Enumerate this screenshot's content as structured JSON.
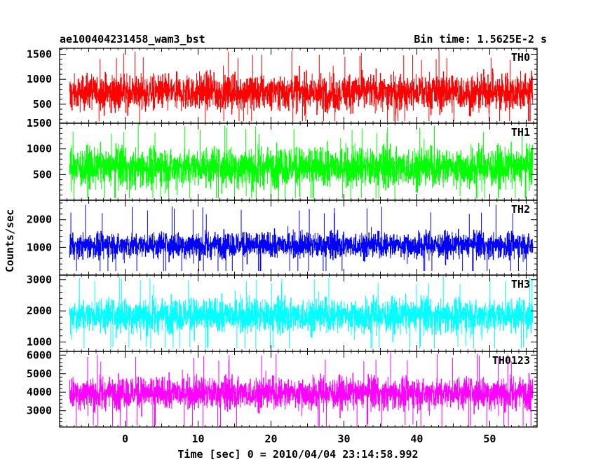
{
  "chart_data": {
    "type": "line",
    "title": "ae100404231458_wam3_bst",
    "subtitle": "Bin time: 1.5625E-2 s",
    "xlabel": "Time [sec] 0 = 2010/04/04 23:14:58.992",
    "ylabel": "Counts/sec",
    "xlim": [
      -9.0,
      56.5
    ],
    "x_ticks": [
      0,
      10,
      20,
      30,
      40,
      50
    ],
    "data_x_range": [
      -7.6,
      55.9
    ],
    "grid": false,
    "panels": [
      {
        "name": "TH0",
        "color": "#ff0000",
        "ylim": [
          120,
          1620
        ],
        "y_ticks": [
          500,
          1000,
          1500
        ],
        "typical_range": [
          280,
          1300
        ],
        "min": 160,
        "max": 1590,
        "mean": 740
      },
      {
        "name": "TH1",
        "color": "#00ff00",
        "ylim": [
          0,
          1500
        ],
        "y_ticks": [
          500,
          1000,
          1500
        ],
        "typical_range": [
          120,
          1250
        ],
        "min": 40,
        "max": 1500,
        "mean": 640
      },
      {
        "name": "TH2",
        "color": "#0000ff",
        "ylim": [
          0,
          2700
        ],
        "y_ticks": [
          1000,
          2000
        ],
        "typical_range": [
          450,
          1800
        ],
        "min": 150,
        "max": 2550,
        "mean": 1080
      },
      {
        "name": "TH3",
        "color": "#00ffff",
        "ylim": [
          700,
          3150
        ],
        "y_ticks": [
          1000,
          2000,
          3000
        ],
        "typical_range": [
          1100,
          2700
        ],
        "min": 800,
        "max": 3150,
        "mean": 1850
      },
      {
        "name": "TH0123",
        "color": "#ff00ff",
        "ylim": [
          2120,
          6200
        ],
        "y_ticks": [
          3000,
          4000,
          5000,
          6000
        ],
        "typical_range": [
          2700,
          5200
        ],
        "min": 2150,
        "max": 6200,
        "mean": 3950
      }
    ]
  }
}
